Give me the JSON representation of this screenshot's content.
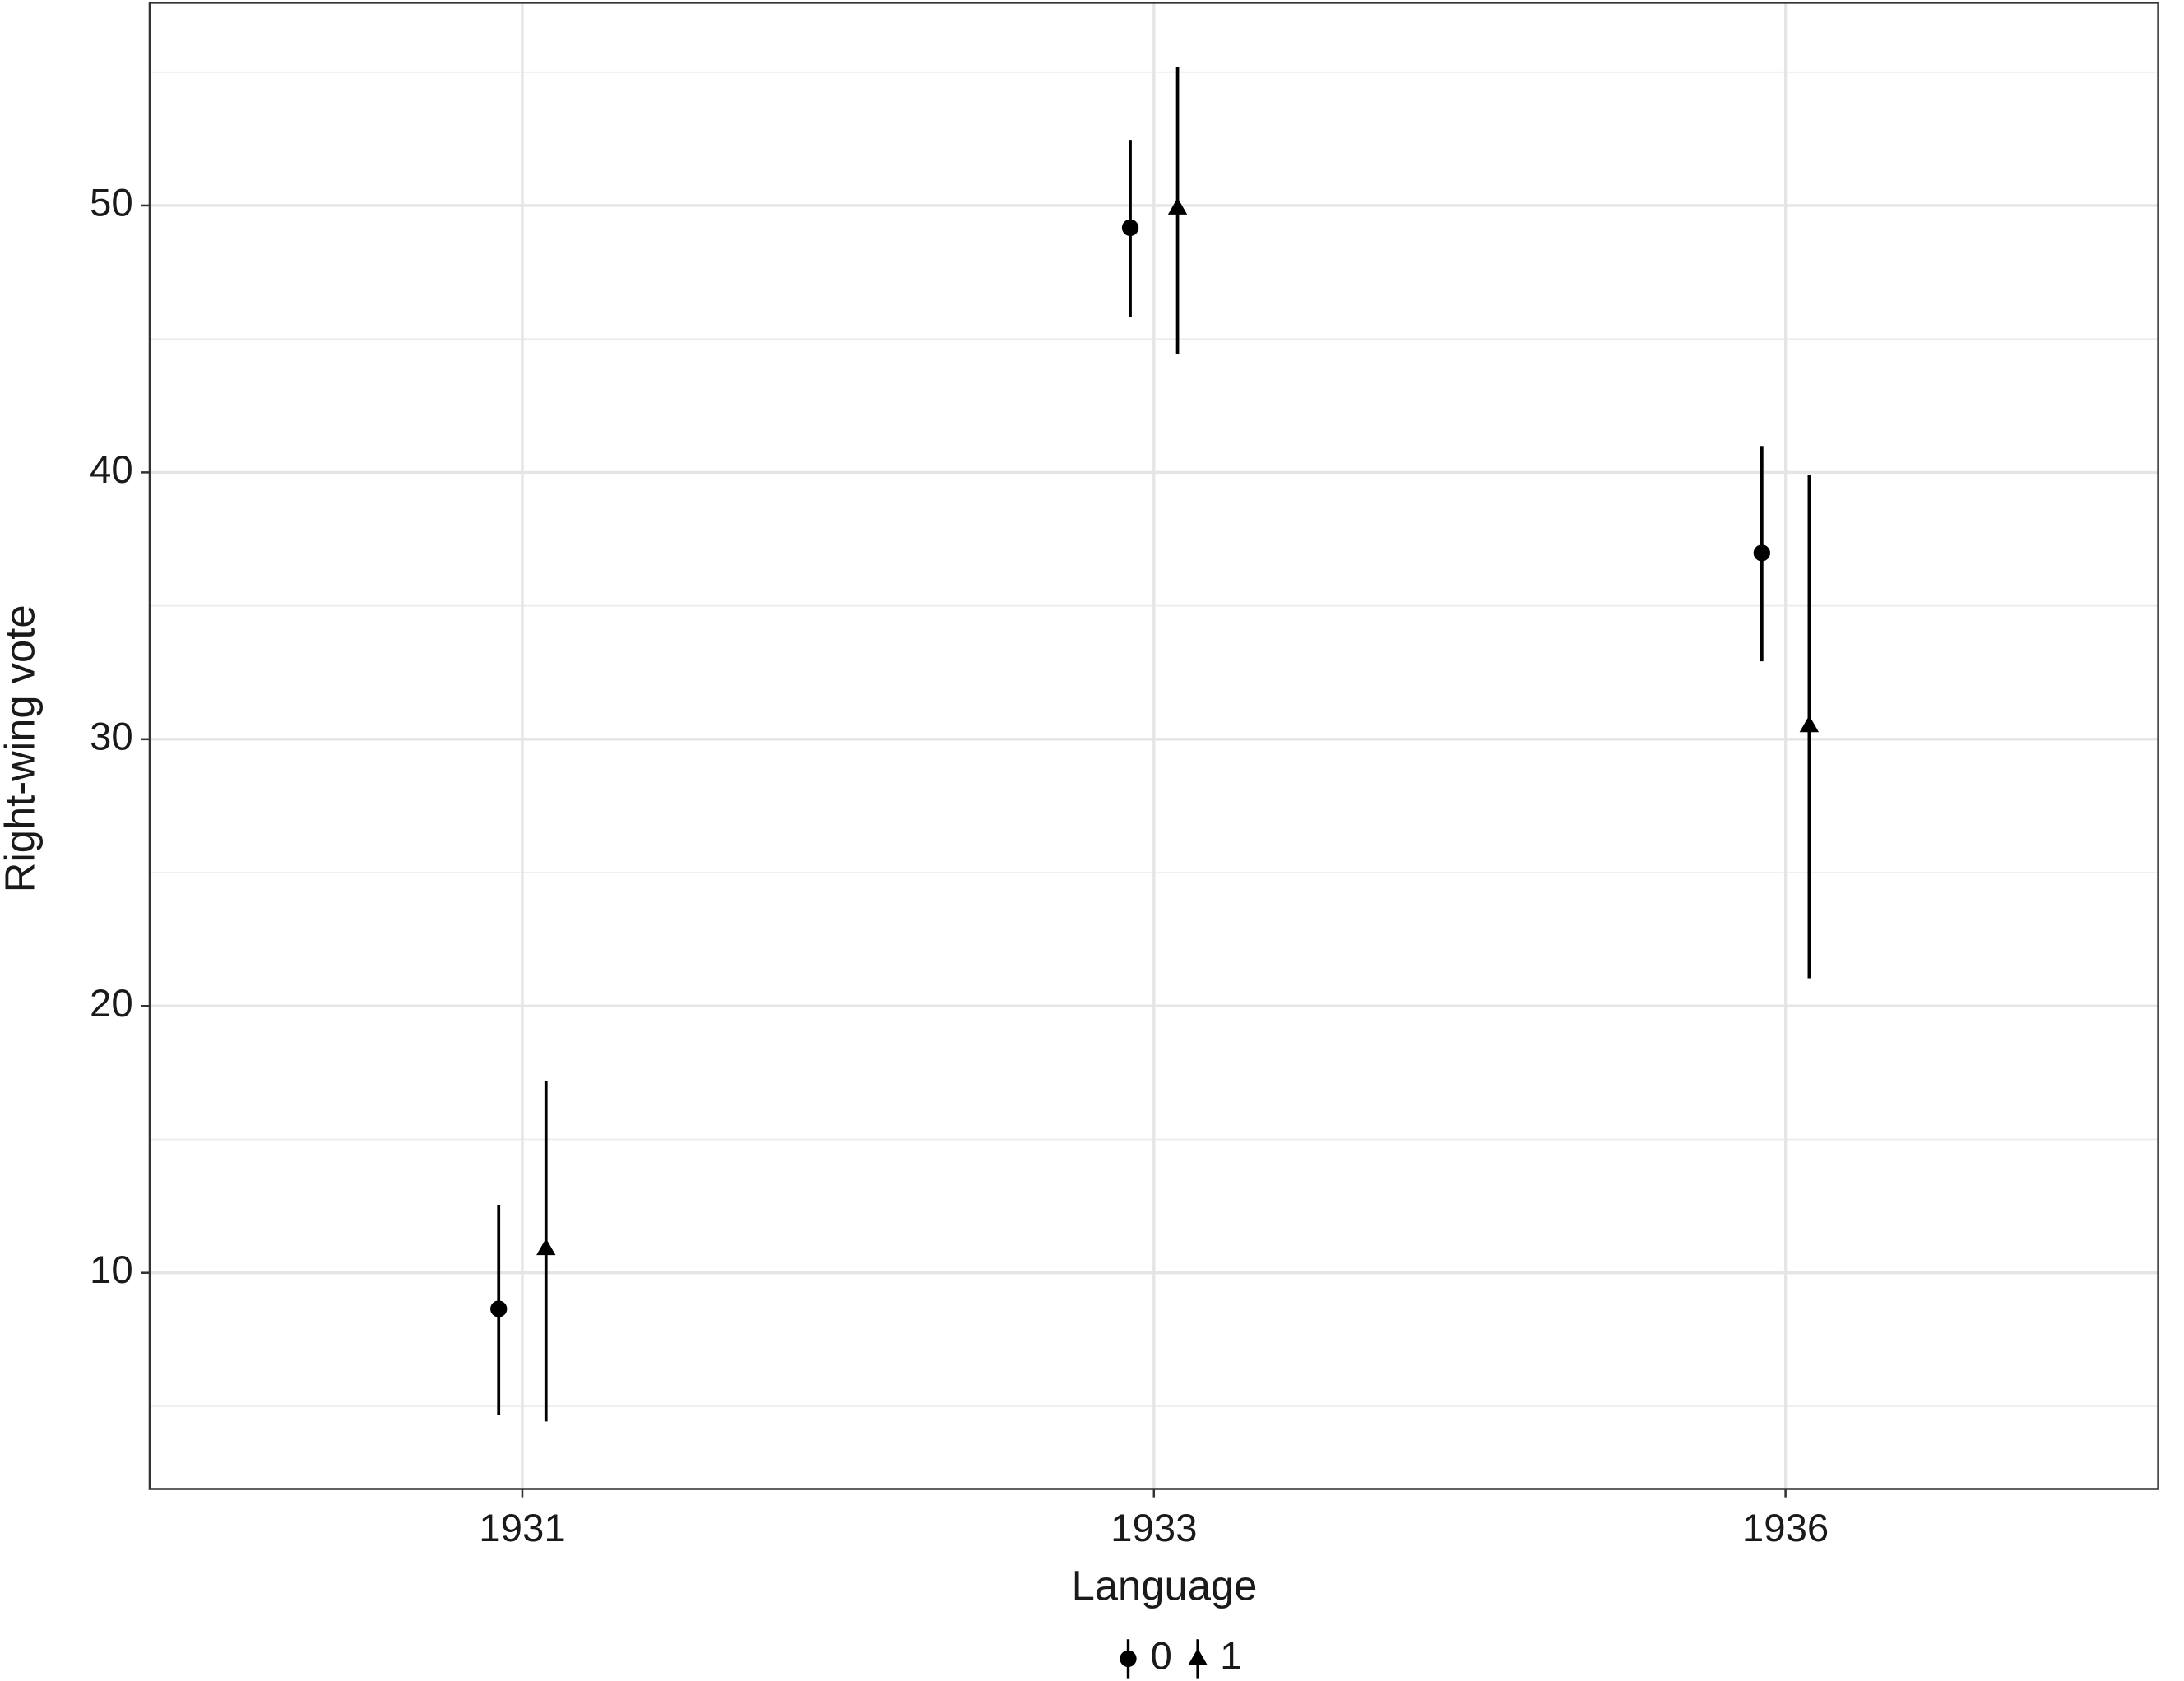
{
  "chart_data": {
    "type": "pointrange",
    "y_label": "Right-wing vote",
    "legend_title": "Language",
    "categories": [
      "1931",
      "1933",
      "1936"
    ],
    "series": [
      {
        "name": "0",
        "marker": "circle",
        "color": "#000000",
        "values": [
          8.65,
          49.17,
          36.98
        ],
        "lower": [
          4.69,
          45.83,
          32.92
        ],
        "upper": [
          12.55,
          52.46,
          40.99
        ]
      },
      {
        "name": "1",
        "marker": "triangle",
        "color": "#000000",
        "values": [
          10.9,
          49.9,
          30.5
        ],
        "lower": [
          4.43,
          44.43,
          21.04
        ],
        "upper": [
          17.19,
          55.2,
          39.9
        ]
      }
    ],
    "ylim": [
      1.9,
      57.6
    ],
    "yticks": [
      10,
      20,
      30,
      40,
      50
    ],
    "minor_yticks": [
      5,
      15,
      25,
      35,
      45,
      55
    ],
    "grid": true,
    "legend_position": "bottom"
  }
}
